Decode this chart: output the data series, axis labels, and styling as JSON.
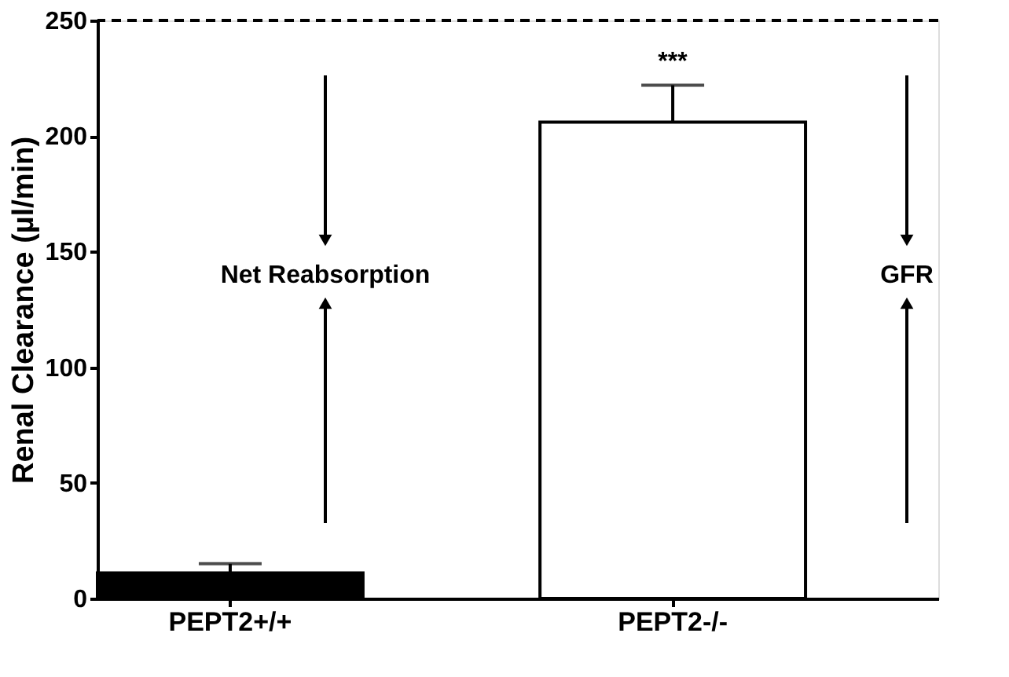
{
  "chart_data": {
    "type": "bar",
    "ylabel": "Renal Clearance (µl/min)",
    "categories": [
      "PEPT2+/+",
      "PEPT2-/-"
    ],
    "values": [
      11,
      206
    ],
    "colors": [
      "#000000",
      "#ffffff"
    ],
    "errors": [
      [
        11,
        15
      ],
      [
        206,
        222
      ]
    ],
    "ylim": [
      0,
      250
    ],
    "yticks": [
      0,
      50,
      100,
      150,
      200,
      250
    ],
    "grid": false,
    "ref_lines": [
      {
        "axis": "y",
        "value": 250,
        "line_style": "dashed",
        "color": "#000000"
      }
    ],
    "annotations": [
      "***",
      "Net Reabsorption",
      "GFR"
    ]
  }
}
